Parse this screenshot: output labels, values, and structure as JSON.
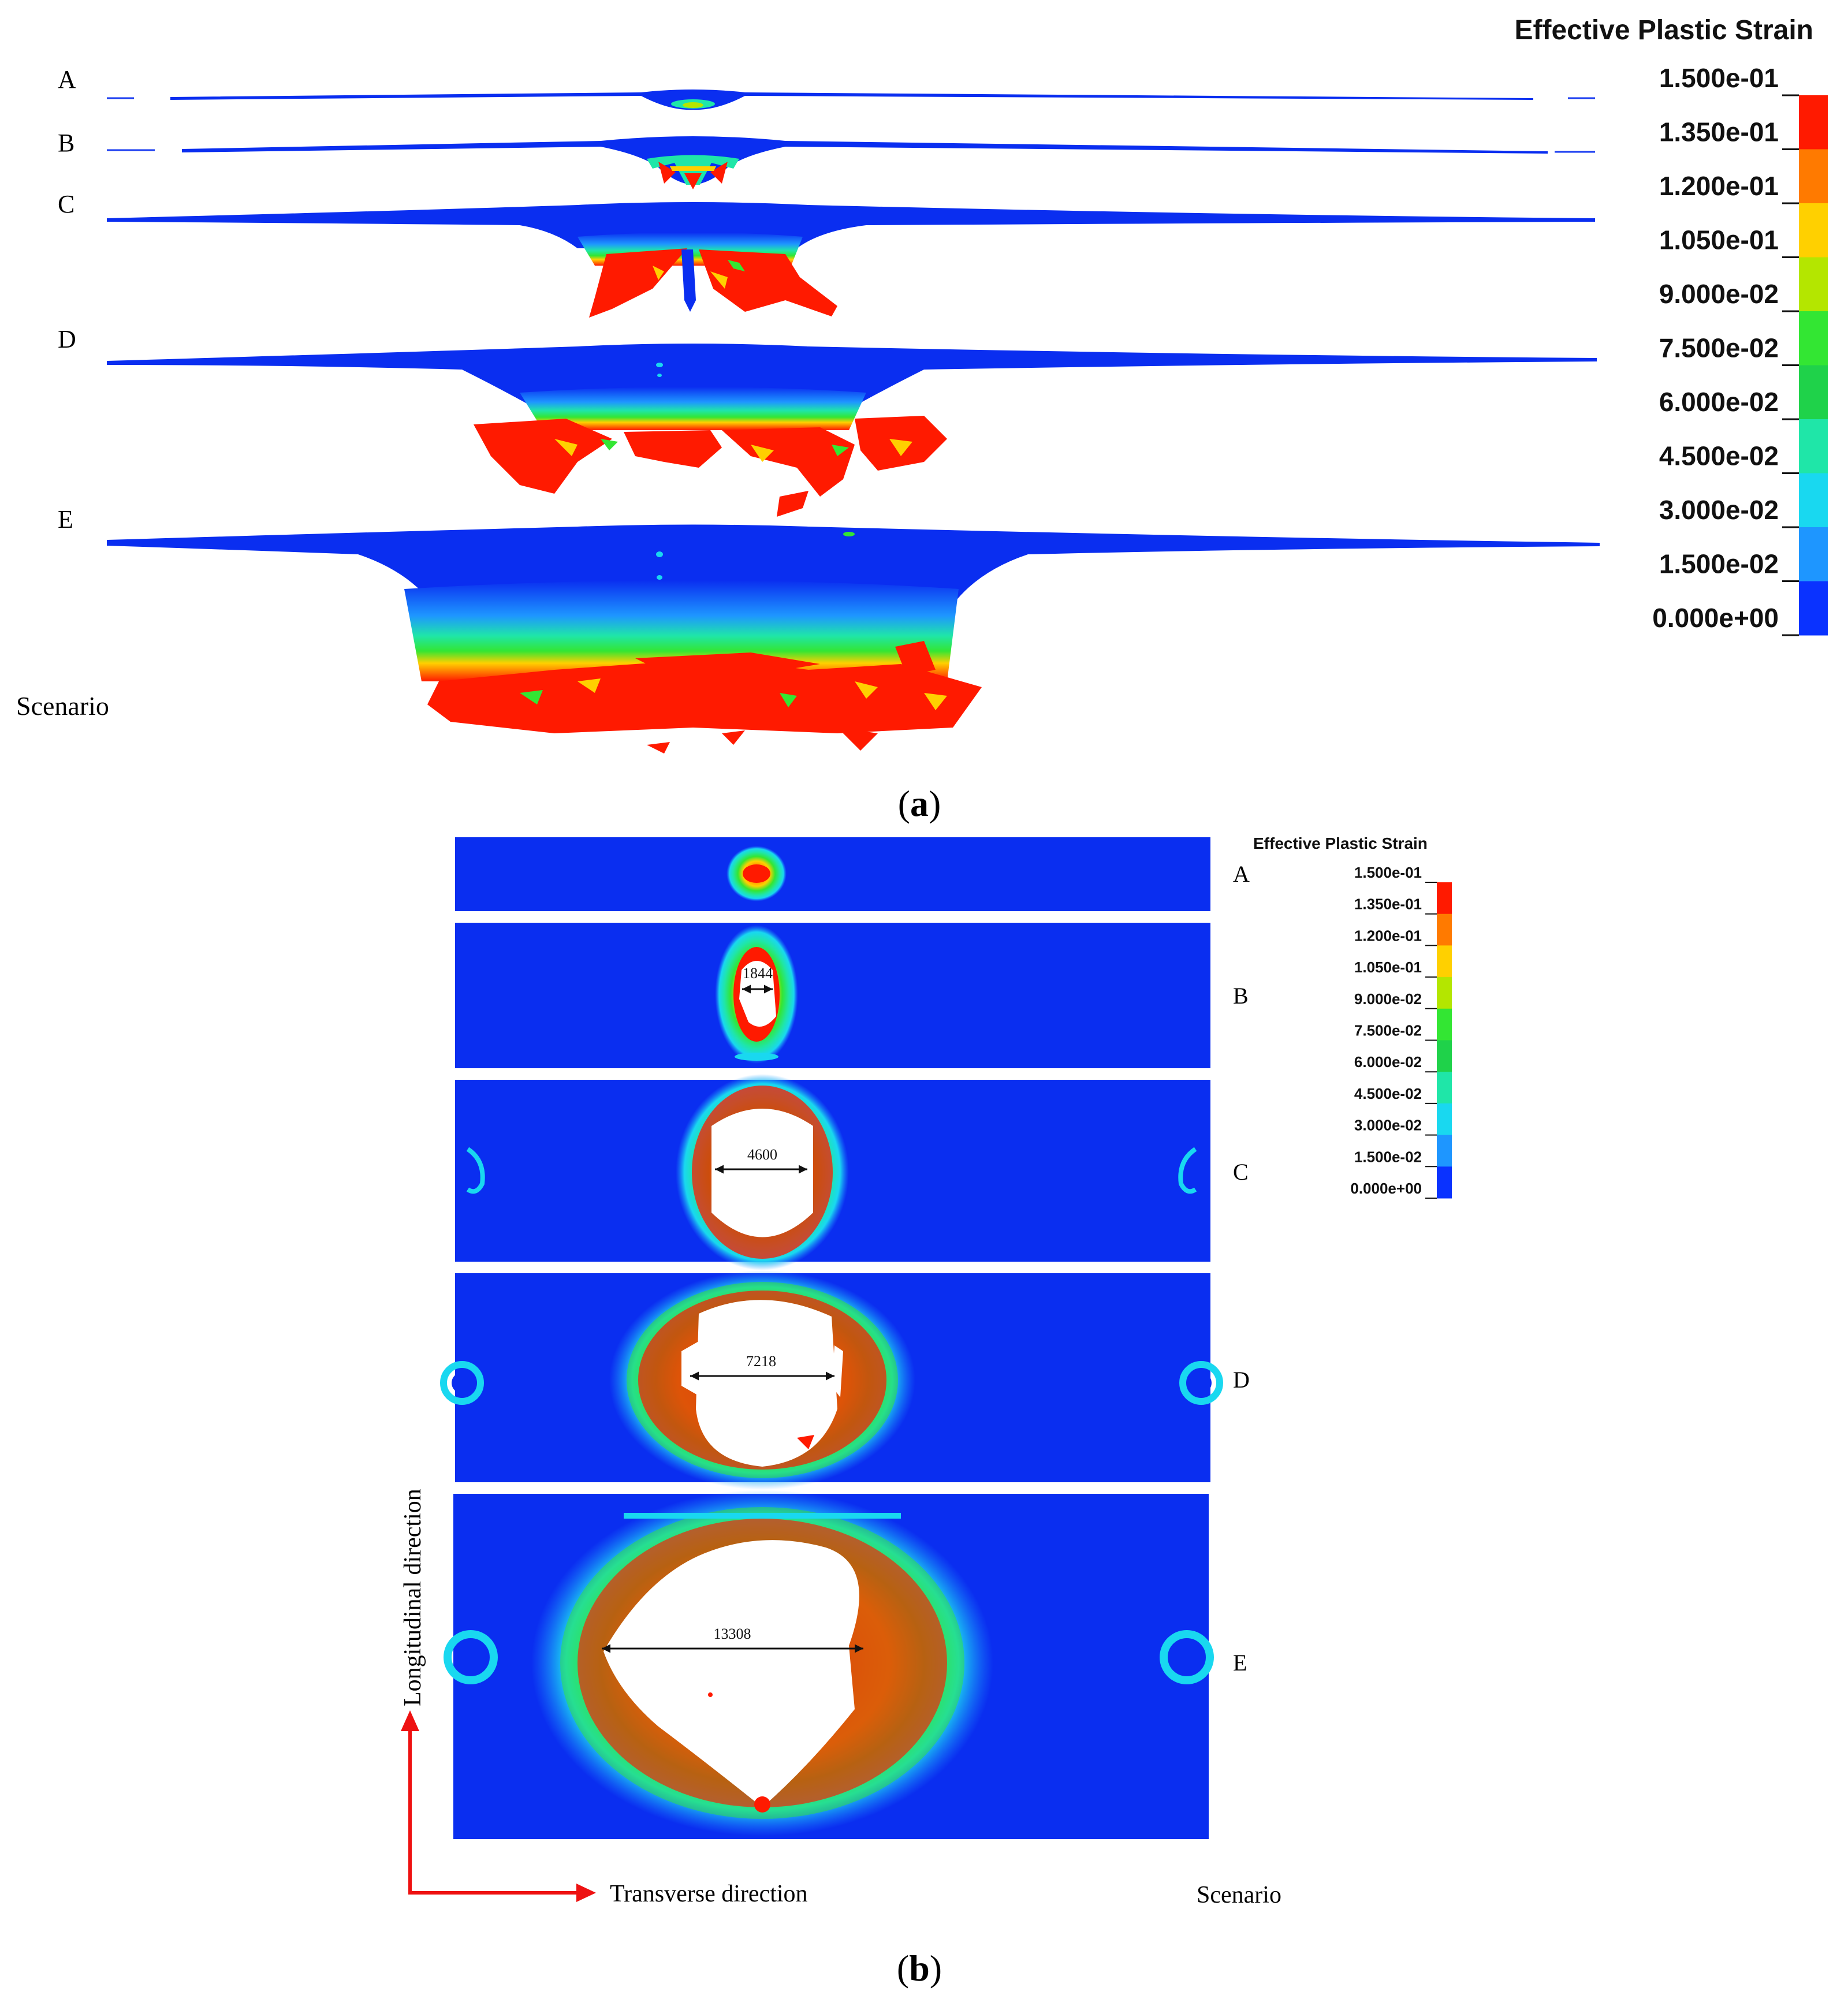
{
  "panel_a": {
    "caption_open": "(",
    "caption_letter": "a",
    "caption_close": ")",
    "scenario_label": "Scenario",
    "scenario_letters": [
      "A",
      "B",
      "C",
      "D",
      "E"
    ],
    "legend": {
      "title": "Effective Plastic Strain",
      "ticks": [
        "1.500e-01",
        "1.350e-01",
        "1.200e-01",
        "1.050e-01",
        "9.000e-02",
        "7.500e-02",
        "6.000e-02",
        "4.500e-02",
        "3.000e-02",
        "1.500e-02",
        "0.000e+00"
      ]
    }
  },
  "panel_b": {
    "caption_open": "(",
    "caption_letter": "b",
    "caption_close": ")",
    "scenario_label": "Scenario",
    "scenario_letters": [
      "A",
      "B",
      "C",
      "D",
      "E"
    ],
    "hole_widths": [
      "1844",
      "4600",
      "7218",
      "13308"
    ],
    "axis_longitudinal": "Longitudinal  direction",
    "axis_transverse": "Transverse direction",
    "legend": {
      "title": "Effective Plastic Strain",
      "ticks": [
        "1.500e-01",
        "1.350e-01",
        "1.200e-01",
        "1.050e-01",
        "9.000e-02",
        "7.500e-02",
        "6.000e-02",
        "4.500e-02",
        "3.000e-02",
        "1.500e-02",
        "0.000e+00"
      ]
    }
  },
  "colors": {
    "legend_bands_top_to_bottom": [
      "#ff1a00",
      "#ff7a00",
      "#ffd000",
      "#b4e600",
      "#33e633",
      "#1fd24a",
      "#1fe6a8",
      "#19d8f0",
      "#1e96ff",
      "#0a32ff"
    ],
    "plate_blue": "#0a2ef0",
    "strain_red": "#ff1a00",
    "arrow_red": "#ee1111"
  }
}
